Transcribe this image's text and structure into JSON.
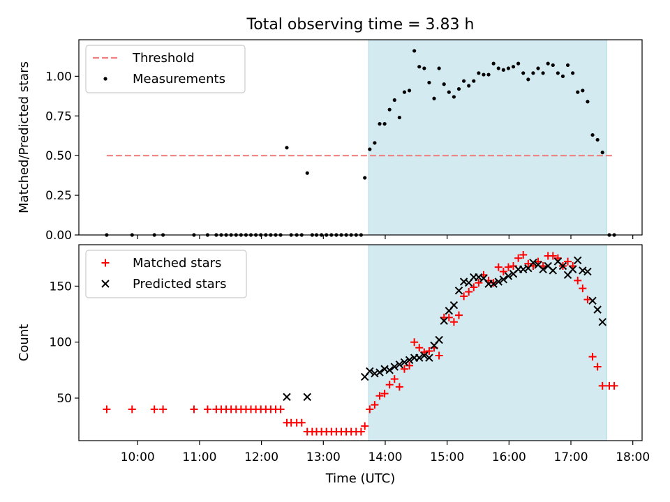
{
  "figure": {
    "title": "Total observing time = 3.83 h",
    "xlabel": "Time (UTC)",
    "xticks": [
      {
        "value": 10,
        "label": "10:00"
      },
      {
        "value": 11,
        "label": "11:00"
      },
      {
        "value": 12,
        "label": "12:00"
      },
      {
        "value": 13,
        "label": "13:00"
      },
      {
        "value": 14,
        "label": "14:00"
      },
      {
        "value": 15,
        "label": "15:00"
      },
      {
        "value": 16,
        "label": "16:00"
      },
      {
        "value": 17,
        "label": "17:00"
      },
      {
        "value": 18,
        "label": "18:00"
      }
    ],
    "xlim": [
      9.05,
      18.15
    ],
    "shaded_span": [
      13.73,
      17.58
    ],
    "shade_color": "#d3eaf1"
  },
  "chart_data": [
    {
      "type": "scatter",
      "ylabel": "Matched/Predicted stars",
      "ylim": [
        0,
        1.23
      ],
      "yticks": [
        {
          "value": 0,
          "label": "0.00"
        },
        {
          "value": 0.25,
          "label": "0.25"
        },
        {
          "value": 0.5,
          "label": "0.50"
        },
        {
          "value": 0.75,
          "label": "0.75"
        },
        {
          "value": 1.0,
          "label": "1.00"
        }
      ],
      "legend_position": "top-left",
      "threshold": {
        "name": "Threshold",
        "value": 0.5,
        "x": [
          9.5,
          17.7
        ],
        "color": "#f08080"
      },
      "series": [
        {
          "name": "Measurements",
          "marker": "dot",
          "color": "#000000",
          "points": [
            [
              9.5,
              0
            ],
            [
              9.91,
              0
            ],
            [
              10.27,
              0
            ],
            [
              10.41,
              0
            ],
            [
              10.91,
              0
            ],
            [
              11.13,
              0
            ],
            [
              11.27,
              0
            ],
            [
              11.35,
              0
            ],
            [
              11.43,
              0
            ],
            [
              11.51,
              0
            ],
            [
              11.59,
              0
            ],
            [
              11.67,
              0
            ],
            [
              11.75,
              0
            ],
            [
              11.83,
              0
            ],
            [
              11.91,
              0
            ],
            [
              11.99,
              0
            ],
            [
              12.07,
              0
            ],
            [
              12.15,
              0
            ],
            [
              12.23,
              0
            ],
            [
              12.31,
              0
            ],
            [
              12.41,
              0.55
            ],
            [
              12.48,
              0
            ],
            [
              12.57,
              0
            ],
            [
              12.65,
              0
            ],
            [
              12.74,
              0.39
            ],
            [
              12.82,
              0
            ],
            [
              12.89,
              0
            ],
            [
              12.97,
              0
            ],
            [
              13.05,
              0
            ],
            [
              13.13,
              0
            ],
            [
              13.21,
              0
            ],
            [
              13.29,
              0
            ],
            [
              13.37,
              0
            ],
            [
              13.45,
              0
            ],
            [
              13.53,
              0
            ],
            [
              13.61,
              0
            ],
            [
              13.67,
              0.36
            ],
            [
              13.75,
              0.54
            ],
            [
              13.83,
              0.58
            ],
            [
              13.91,
              0.7
            ],
            [
              13.99,
              0.7
            ],
            [
              14.07,
              0.79
            ],
            [
              14.15,
              0.85
            ],
            [
              14.23,
              0.74
            ],
            [
              14.31,
              0.9
            ],
            [
              14.39,
              0.91
            ],
            [
              14.47,
              1.16
            ],
            [
              14.55,
              1.06
            ],
            [
              14.63,
              1.05
            ],
            [
              14.71,
              0.96
            ],
            [
              14.79,
              0.86
            ],
            [
              14.87,
              1.05
            ],
            [
              14.95,
              0.95
            ],
            [
              15.03,
              0.9
            ],
            [
              15.11,
              0.87
            ],
            [
              15.19,
              0.92
            ],
            [
              15.27,
              0.97
            ],
            [
              15.35,
              0.94
            ],
            [
              15.43,
              0.97
            ],
            [
              15.51,
              1.02
            ],
            [
              15.59,
              1.01
            ],
            [
              15.67,
              1.01
            ],
            [
              15.75,
              1.08
            ],
            [
              15.83,
              1.05
            ],
            [
              15.91,
              1.04
            ],
            [
              15.99,
              1.05
            ],
            [
              16.07,
              1.06
            ],
            [
              16.15,
              1.08
            ],
            [
              16.23,
              1.02
            ],
            [
              16.31,
              0.98
            ],
            [
              16.39,
              1.02
            ],
            [
              16.47,
              1.05
            ],
            [
              16.55,
              1.02
            ],
            [
              16.63,
              1.08
            ],
            [
              16.71,
              1.07
            ],
            [
              16.79,
              1.02
            ],
            [
              16.87,
              1.0
            ],
            [
              16.95,
              1.07
            ],
            [
              17.03,
              1.02
            ],
            [
              17.11,
              0.9
            ],
            [
              17.19,
              0.91
            ],
            [
              17.27,
              0.84
            ],
            [
              17.35,
              0.63
            ],
            [
              17.43,
              0.6
            ],
            [
              17.51,
              0.52
            ],
            [
              17.62,
              0
            ],
            [
              17.7,
              0
            ]
          ]
        }
      ]
    },
    {
      "type": "scatter",
      "ylabel": "Count",
      "ylim": [
        12,
        187
      ],
      "yticks": [
        {
          "value": 50,
          "label": "50"
        },
        {
          "value": 100,
          "label": "100"
        },
        {
          "value": 150,
          "label": "150"
        }
      ],
      "legend_position": "top-left",
      "series": [
        {
          "name": "Matched stars",
          "marker": "plus",
          "color": "#ff0000",
          "points": [
            [
              9.5,
              40
            ],
            [
              9.91,
              40
            ],
            [
              10.27,
              40
            ],
            [
              10.41,
              40
            ],
            [
              10.91,
              40
            ],
            [
              11.13,
              40
            ],
            [
              11.27,
              40
            ],
            [
              11.35,
              40
            ],
            [
              11.43,
              40
            ],
            [
              11.51,
              40
            ],
            [
              11.59,
              40
            ],
            [
              11.67,
              40
            ],
            [
              11.75,
              40
            ],
            [
              11.83,
              40
            ],
            [
              11.91,
              40
            ],
            [
              11.99,
              40
            ],
            [
              12.07,
              40
            ],
            [
              12.15,
              40
            ],
            [
              12.23,
              40
            ],
            [
              12.31,
              40
            ],
            [
              12.41,
              28
            ],
            [
              12.48,
              28
            ],
            [
              12.57,
              28
            ],
            [
              12.65,
              28
            ],
            [
              12.74,
              20
            ],
            [
              12.82,
              20
            ],
            [
              12.89,
              20
            ],
            [
              12.97,
              20
            ],
            [
              13.05,
              20
            ],
            [
              13.13,
              20
            ],
            [
              13.21,
              20
            ],
            [
              13.29,
              20
            ],
            [
              13.37,
              20
            ],
            [
              13.45,
              20
            ],
            [
              13.53,
              20
            ],
            [
              13.61,
              20
            ],
            [
              13.67,
              25
            ],
            [
              13.75,
              40
            ],
            [
              13.83,
              44
            ],
            [
              13.91,
              52
            ],
            [
              13.99,
              54
            ],
            [
              14.07,
              62
            ],
            [
              14.15,
              67
            ],
            [
              14.23,
              60
            ],
            [
              14.31,
              76
            ],
            [
              14.39,
              79
            ],
            [
              14.47,
              100
            ],
            [
              14.55,
              95
            ],
            [
              14.63,
              91
            ],
            [
              14.71,
              92
            ],
            [
              14.79,
              95
            ],
            [
              14.87,
              88
            ],
            [
              14.95,
              122
            ],
            [
              15.03,
              122
            ],
            [
              15.11,
              118
            ],
            [
              15.19,
              124
            ],
            [
              15.27,
              141
            ],
            [
              15.35,
              145
            ],
            [
              15.43,
              149
            ],
            [
              15.51,
              153
            ],
            [
              15.59,
              160
            ],
            [
              15.67,
              155
            ],
            [
              15.75,
              153
            ],
            [
              15.83,
              167
            ],
            [
              15.91,
              163
            ],
            [
              15.99,
              167
            ],
            [
              16.07,
              168
            ],
            [
              16.15,
              175
            ],
            [
              16.23,
              178
            ],
            [
              16.31,
              170
            ],
            [
              16.39,
              168
            ],
            [
              16.47,
              172
            ],
            [
              16.55,
              168
            ],
            [
              16.63,
              177
            ],
            [
              16.71,
              177
            ],
            [
              16.79,
              175
            ],
            [
              16.87,
              168
            ],
            [
              16.95,
              172
            ],
            [
              17.03,
              168
            ],
            [
              17.11,
              155
            ],
            [
              17.19,
              148
            ],
            [
              17.27,
              138
            ],
            [
              17.35,
              87
            ],
            [
              17.43,
              78
            ],
            [
              17.51,
              61
            ],
            [
              17.62,
              61
            ],
            [
              17.7,
              61
            ]
          ]
        },
        {
          "name": "Predicted stars",
          "marker": "x",
          "color": "#000000",
          "points": [
            [
              12.41,
              51
            ],
            [
              12.74,
              51
            ],
            [
              13.67,
              69
            ],
            [
              13.75,
              74
            ],
            [
              13.83,
              72
            ],
            [
              13.91,
              73
            ],
            [
              13.99,
              76
            ],
            [
              14.07,
              75
            ],
            [
              14.15,
              78
            ],
            [
              14.23,
              80
            ],
            [
              14.31,
              82
            ],
            [
              14.39,
              84
            ],
            [
              14.47,
              86
            ],
            [
              14.55,
              86
            ],
            [
              14.63,
              88
            ],
            [
              14.71,
              86
            ],
            [
              14.79,
              97
            ],
            [
              14.87,
              102
            ],
            [
              14.95,
              119
            ],
            [
              15.03,
              128
            ],
            [
              15.11,
              133
            ],
            [
              15.19,
              146
            ],
            [
              15.27,
              154
            ],
            [
              15.35,
              153
            ],
            [
              15.43,
              158
            ],
            [
              15.51,
              158
            ],
            [
              15.59,
              157
            ],
            [
              15.67,
              152
            ],
            [
              15.75,
              152
            ],
            [
              15.83,
              154
            ],
            [
              15.91,
              156
            ],
            [
              15.99,
              159
            ],
            [
              16.07,
              161
            ],
            [
              16.15,
              165
            ],
            [
              16.23,
              165
            ],
            [
              16.31,
              166
            ],
            [
              16.39,
              171
            ],
            [
              16.47,
              169
            ],
            [
              16.55,
              165
            ],
            [
              16.63,
              168
            ],
            [
              16.71,
              164
            ],
            [
              16.79,
              172
            ],
            [
              16.87,
              168
            ],
            [
              16.95,
              160
            ],
            [
              17.03,
              165
            ],
            [
              17.11,
              173
            ],
            [
              17.19,
              164
            ],
            [
              17.27,
              163
            ],
            [
              17.35,
              137
            ],
            [
              17.43,
              129
            ],
            [
              17.51,
              118
            ]
          ]
        }
      ]
    }
  ]
}
